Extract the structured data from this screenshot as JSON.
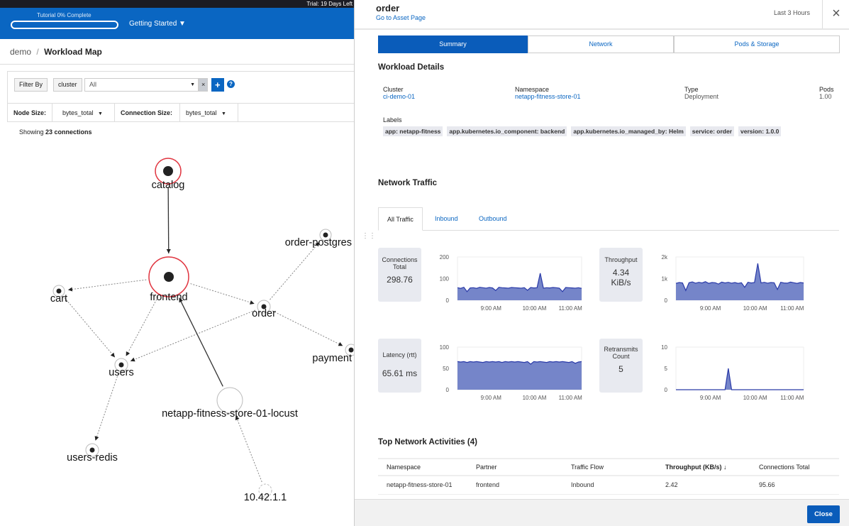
{
  "topbar": {
    "trial": "Trial: 19 Days Left"
  },
  "header": {
    "tutorial": "Tutorial 0% Complete",
    "tutorial_progress": 0,
    "getting_started": "Getting Started"
  },
  "breadcrumb": {
    "parent": "demo",
    "sep": "/",
    "current": "Workload Map"
  },
  "filter": {
    "label": "Filter By",
    "field": "cluster",
    "value": "All",
    "clear": "×",
    "add": "+",
    "help": "?"
  },
  "sizes": {
    "node_label": "Node Size:",
    "node_value": "bytes_total",
    "conn_label": "Connection Size:",
    "conn_value": "bytes_total"
  },
  "showing": {
    "prefix": "Showing ",
    "count": "23 connections"
  },
  "graph": {
    "nodes": [
      "catalog",
      "frontend",
      "cart",
      "order",
      "order-postgres",
      "payment",
      "users",
      "users-redis",
      "netapp-fitness-store-01-locust",
      "10.42.1.1"
    ]
  },
  "panel": {
    "title": "order",
    "asset_link": "Go to Asset Page",
    "range": "Last 3 Hours",
    "close_icon": "×",
    "tabs": [
      "Summary",
      "Network",
      "Pods & Storage"
    ],
    "details_title": "Workload Details",
    "details": [
      {
        "k": "Cluster",
        "v": "ci-demo-01"
      },
      {
        "k": "Namespace",
        "v": "netapp-fitness-store-01"
      },
      {
        "k": "Type",
        "v": "Deployment"
      },
      {
        "k": "Pods",
        "v": "1.00"
      }
    ],
    "labels_title": "Labels",
    "labels": [
      "app: netapp-fitness",
      "app.kubernetes.io_component: backend",
      "app.kubernetes.io_managed_by: Helm",
      "service: order",
      "version: 1.0.0"
    ],
    "traffic_title": "Network Traffic",
    "traffic_tabs": [
      "All Traffic",
      "Inbound",
      "Outbound"
    ],
    "kpis": [
      {
        "label": "Connections Total",
        "value": "298.76"
      },
      {
        "label": "Throughput",
        "value": "4.34 KiB/s"
      },
      {
        "label": "Latency (rtt)",
        "value": "65.61 ms"
      },
      {
        "label": "Retransmits Count",
        "value": "5"
      }
    ],
    "activities_title": "Top Network Activities (4)",
    "table": {
      "headers": [
        "Namespace",
        "Partner",
        "Traffic Flow",
        "Throughput (KB/s) ↓",
        "Connections Total"
      ],
      "rows": [
        [
          "netapp-fitness-store-01",
          "frontend",
          "Inbound",
          "2.42",
          "95.66"
        ]
      ]
    },
    "close": "Close"
  },
  "chart_data": [
    {
      "type": "area",
      "ylim": [
        0,
        200
      ],
      "yticks": [
        "0",
        "100",
        "200"
      ],
      "xticks": [
        "9:00 AM",
        "10:00 AM",
        "11:00 AM"
      ],
      "color": "#2a3aa8",
      "values": [
        58,
        55,
        60,
        40,
        57,
        58,
        55,
        60,
        58,
        56,
        59,
        57,
        45,
        60,
        58,
        57,
        56,
        59,
        58,
        57,
        56,
        58,
        46,
        59,
        57,
        58,
        125,
        56,
        58,
        57,
        59,
        58,
        56,
        40,
        59,
        58,
        57,
        56,
        58,
        55
      ]
    },
    {
      "type": "area",
      "ylim": [
        0,
        2000
      ],
      "yticks": [
        "0",
        "1k",
        "2k"
      ],
      "xticks": [
        "9:00 AM",
        "10:00 AM",
        "11:00 AM"
      ],
      "color": "#2a3aa8",
      "values": [
        780,
        820,
        800,
        450,
        810,
        850,
        790,
        830,
        800,
        860,
        780,
        820,
        810,
        750,
        840,
        800,
        830,
        790,
        820,
        780,
        810,
        600,
        830,
        800,
        820,
        1700,
        800,
        830,
        790,
        820,
        810,
        500,
        830,
        800,
        790,
        840,
        810,
        780,
        820,
        800
      ]
    },
    {
      "type": "area",
      "ylim": [
        0,
        100
      ],
      "yticks": [
        "0",
        "50",
        "100"
      ],
      "xticks": [
        "9:00 AM",
        "10:00 AM",
        "11:00 AM"
      ],
      "color": "#2a3aa8",
      "values": [
        66,
        65,
        66,
        64,
        66,
        65,
        66,
        65,
        64,
        66,
        65,
        66,
        65,
        66,
        64,
        66,
        65,
        66,
        65,
        66,
        65,
        64,
        66,
        60,
        66,
        65,
        66,
        65,
        64,
        66,
        65,
        66,
        65,
        66,
        65,
        64,
        66,
        62,
        65,
        66
      ]
    },
    {
      "type": "area",
      "ylim": [
        0,
        10
      ],
      "yticks": [
        "0",
        "5",
        "10"
      ],
      "xticks": [
        "9:00 AM",
        "10:00 AM",
        "11:00 AM"
      ],
      "color": "#2a3aa8",
      "values": [
        0,
        0,
        0,
        0,
        0,
        0,
        0,
        0,
        0,
        0,
        0,
        0,
        0,
        0,
        0,
        0,
        5,
        0,
        0,
        0,
        0,
        0,
        0,
        0,
        0,
        0,
        0,
        0,
        0,
        0,
        0,
        0,
        0,
        0,
        0,
        0,
        0,
        0,
        0,
        0
      ]
    }
  ]
}
